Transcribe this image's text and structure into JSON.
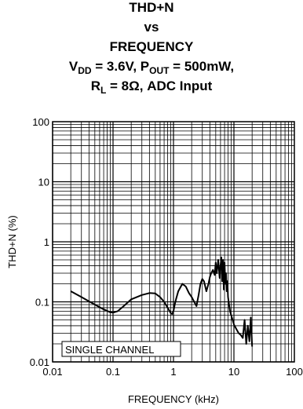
{
  "chart_data": {
    "type": "line",
    "title_lines": {
      "l1": "THD+N",
      "l2": "vs",
      "l3": "FREQUENCY",
      "l4_parts": [
        "V",
        "DD",
        " = 3.6V, P",
        "OUT",
        " = 500mW,"
      ],
      "l5_parts": [
        "R",
        "L",
        " = 8Ω, ADC Input"
      ]
    },
    "xlabel": "FREQUENCY (kHz)",
    "ylabel": "THD+N (%)",
    "x_scale": "log",
    "y_scale": "log",
    "xlim": [
      0.01,
      100
    ],
    "ylim": [
      0.01,
      100
    ],
    "x_tick_labels": [
      "0.01",
      "0.1",
      "1",
      "10",
      "100"
    ],
    "y_tick_labels": [
      "0.01",
      "0.1",
      "1",
      "10",
      "100"
    ],
    "grid": true,
    "legend_box_text": "SINGLE CHANNEL",
    "legend_position": "bottom-left",
    "series": [
      {
        "color": "#000000",
        "x": [
          0.02,
          0.03,
          0.05,
          0.07,
          0.09,
          0.1,
          0.12,
          0.15,
          0.2,
          0.3,
          0.4,
          0.5,
          0.6,
          0.7,
          0.8,
          0.9,
          0.95,
          1.0,
          1.05,
          1.1,
          1.2,
          1.4,
          1.6,
          1.8,
          2.0,
          2.2,
          2.4,
          2.6,
          2.8,
          3.0,
          3.2,
          3.5,
          3.8,
          4.0,
          4.2,
          4.5,
          4.8,
          5.0,
          5.2,
          5.5,
          5.8,
          6.0,
          6.2,
          6.4,
          6.6,
          6.8,
          7.0,
          7.2,
          7.4,
          7.6,
          7.8,
          8.0,
          8.3,
          8.6,
          9.0,
          9.5,
          10.0,
          11.0,
          12.0,
          13.0,
          14.0,
          15.0,
          16.0,
          17.0,
          18.0,
          19.0,
          20.0
        ],
        "y": [
          0.15,
          0.12,
          0.09,
          0.075,
          0.067,
          0.066,
          0.07,
          0.085,
          0.11,
          0.13,
          0.14,
          0.138,
          0.12,
          0.1,
          0.08,
          0.065,
          0.063,
          0.07,
          0.09,
          0.11,
          0.15,
          0.2,
          0.18,
          0.14,
          0.12,
          0.1,
          0.085,
          0.13,
          0.2,
          0.24,
          0.22,
          0.15,
          0.2,
          0.26,
          0.3,
          0.34,
          0.28,
          0.45,
          0.3,
          0.5,
          0.25,
          0.4,
          0.55,
          0.22,
          0.5,
          0.16,
          0.45,
          0.2,
          0.3,
          0.15,
          0.22,
          0.12,
          0.09,
          0.07,
          0.06,
          0.05,
          0.042,
          0.035,
          0.03,
          0.028,
          0.025,
          0.05,
          0.02,
          0.04,
          0.022,
          0.055,
          0.018
        ]
      }
    ]
  }
}
